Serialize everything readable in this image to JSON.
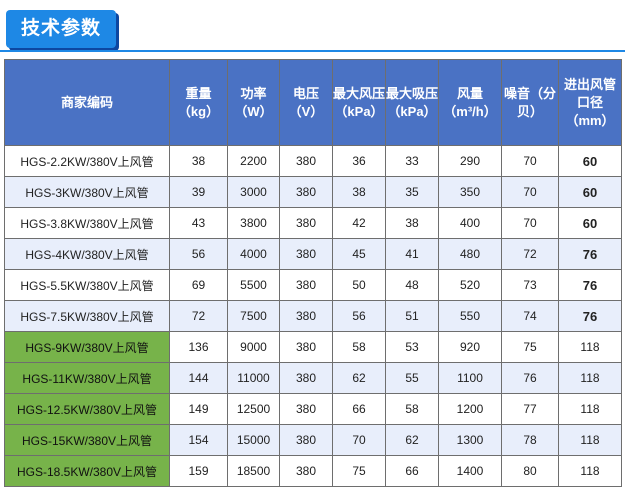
{
  "header": {
    "title": "技术参数"
  },
  "table": {
    "columns": [
      "商家编码",
      "重量（kg）",
      "功率（W）",
      "电压（V）",
      "最大风压（kPa）",
      "最大吸压（kPa）",
      "风量（m³/h）",
      "噪音（分贝）",
      "进出风管口径（mm）"
    ],
    "rows": [
      [
        "HGS-2.2KW/380V上风管",
        "38",
        "2200",
        "380",
        "36",
        "33",
        "290",
        "70",
        "60"
      ],
      [
        "HGS-3KW/380V上风管",
        "39",
        "3000",
        "380",
        "38",
        "35",
        "350",
        "70",
        "60"
      ],
      [
        "HGS-3.8KW/380V上风管",
        "43",
        "3800",
        "380",
        "42",
        "38",
        "400",
        "70",
        "60"
      ],
      [
        "HGS-4KW/380V上风管",
        "56",
        "4000",
        "380",
        "45",
        "41",
        "480",
        "72",
        "76"
      ],
      [
        "HGS-5.5KW/380V上风管",
        "69",
        "5500",
        "380",
        "50",
        "48",
        "520",
        "73",
        "76"
      ],
      [
        "HGS-7.5KW/380V上风管",
        "72",
        "7500",
        "380",
        "56",
        "51",
        "550",
        "74",
        "76"
      ],
      [
        "HGS-9KW/380V上风管",
        "136",
        "9000",
        "380",
        "58",
        "53",
        "920",
        "75",
        "118"
      ],
      [
        "HGS-11KW/380V上风管",
        "144",
        "11000",
        "380",
        "62",
        "55",
        "1100",
        "76",
        "118"
      ],
      [
        "HGS-12.5KW/380V上风管",
        "149",
        "12500",
        "380",
        "66",
        "58",
        "1200",
        "77",
        "118"
      ],
      [
        "HGS-15KW/380V上风管",
        "154",
        "15000",
        "380",
        "70",
        "62",
        "1300",
        "78",
        "118"
      ],
      [
        "HGS-18.5KW/380V上风管",
        "159",
        "18500",
        "380",
        "75",
        "66",
        "1400",
        "80",
        "118"
      ]
    ]
  },
  "colors": {
    "header_bg": "#4a72c4",
    "title_badge": "#1e88e5",
    "row_alt": "#e8eefb",
    "green_model": "#77b34a"
  }
}
